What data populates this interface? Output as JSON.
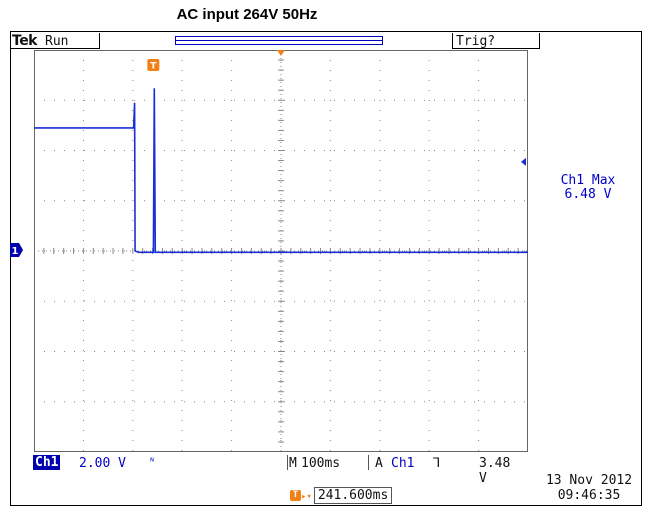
{
  "caption": "AC input 264V 50Hz",
  "header": {
    "logo": "Tek",
    "status": "Run",
    "trigger_state": "Trig?"
  },
  "icons": {
    "trigger_marker": "T",
    "channel_marker": "1",
    "level_arrow": "◂",
    "trigger_slope": "falling-edge-icon",
    "bandwidth": "bw-limit-icon"
  },
  "side_readout": {
    "label": "Ch1 Max",
    "value": "6.48 V"
  },
  "bottom_bar": {
    "channel": "Ch1",
    "volts_div": "2.00 V",
    "bw_symbol": "ᴺ",
    "time_prefix": "M",
    "time_div": "100ms",
    "trig_prefix": "A",
    "trig_source": "Ch1",
    "trig_slope_symbol": "⅂",
    "trig_level": "3.48 V"
  },
  "trigger_position": {
    "symbol": "▸▾",
    "value": "241.600ms"
  },
  "timestamp": {
    "date": "13 Nov 2012",
    "time": "09:46:35"
  },
  "colors": {
    "trace": "#1a2fd8",
    "grid": "#8a8a8a",
    "trigger_marker": "#f08018",
    "channel_badge": "#0000b0"
  },
  "chart_data": {
    "type": "line",
    "title": "",
    "xlabel": "",
    "ylabel": "",
    "grid": true,
    "x_divisions": 10,
    "y_divisions": 8,
    "units": {
      "x": "ms",
      "y": "V"
    },
    "x_scale_per_div": 100,
    "y_scale_per_div": 2.0,
    "xlim": [
      -241.6,
      758.4
    ],
    "ylim": [
      -8.0,
      8.0
    ],
    "series": [
      {
        "values_xy": [
          [
            -241.6,
            4.9
          ],
          [
            -191.6,
            4.9
          ],
          [
            -141.6,
            4.9
          ],
          [
            -91.6,
            4.9
          ],
          [
            -40.0,
            4.9
          ],
          [
            -38.0,
            5.9
          ],
          [
            -37.0,
            0.0
          ],
          [
            -30.0,
            -0.05
          ],
          [
            0.0,
            -0.05
          ],
          [
            2.0,
            6.48
          ],
          [
            4.0,
            -0.05
          ],
          [
            100.0,
            -0.05
          ],
          [
            300.0,
            -0.05
          ],
          [
            500.0,
            -0.05
          ],
          [
            758.4,
            -0.05
          ]
        ]
      }
    ]
  }
}
